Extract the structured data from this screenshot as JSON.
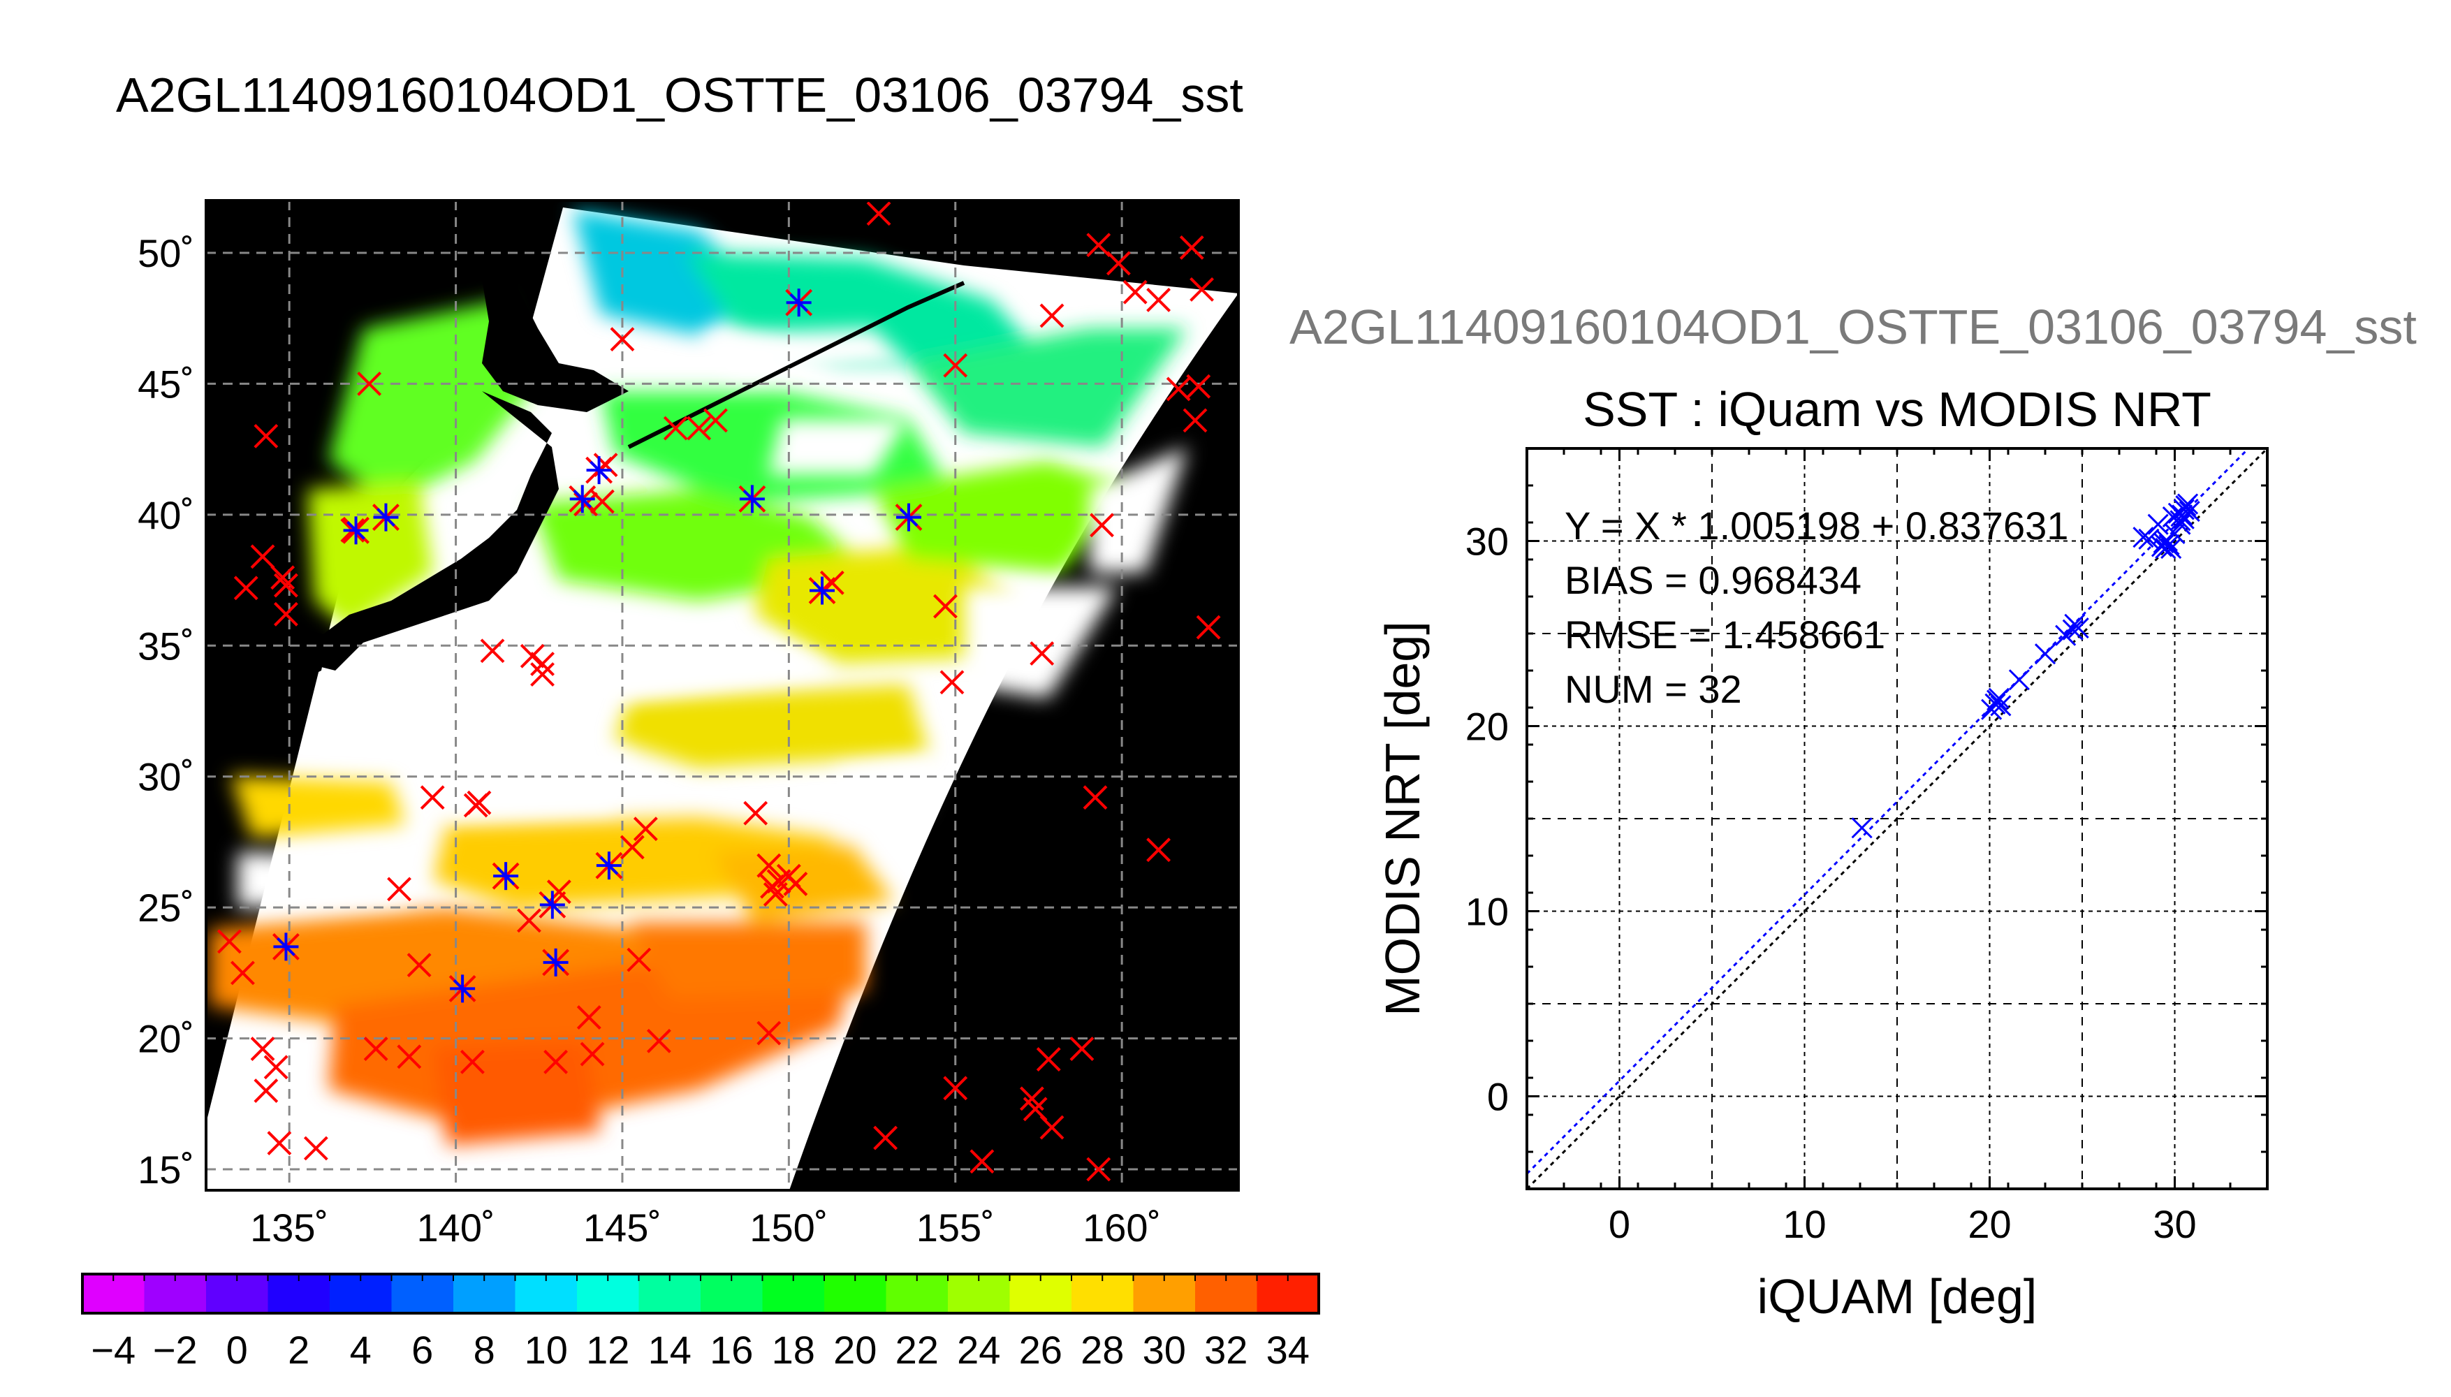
{
  "main_title": "A2GL11409160104OD1_OSTTE_03106_03794_sst",
  "colors": {
    "land": "#000000",
    "cloud": "#ffffff",
    "outside_swath": "#000000",
    "grid": "#888888",
    "iquam_marker": "#ff0000",
    "match_marker": "#0000ff",
    "fit_line": "#0000ff",
    "one_to_one_line": "#000000",
    "right_title": "#7a7a7a"
  },
  "map": {
    "lon_ticks": [
      135,
      140,
      145,
      150,
      155,
      160
    ],
    "lat_ticks": [
      15,
      20,
      25,
      30,
      35,
      40,
      45,
      50
    ],
    "lon_tick_labels": [
      "135˚",
      "140˚",
      "145˚",
      "150˚",
      "155˚",
      "160˚"
    ],
    "lat_tick_labels": [
      "15˚",
      "20˚",
      "25˚",
      "30˚",
      "35˚",
      "40˚",
      "45˚",
      "50˚"
    ],
    "lon_range": [
      132.5,
      163.5
    ],
    "lat_range": [
      14.2,
      52.0
    ],
    "iquam_points": [
      [
        133.2,
        23.7
      ],
      [
        133.6,
        22.5
      ],
      [
        134.2,
        19.6
      ],
      [
        134.6,
        18.9
      ],
      [
        134.3,
        18.0
      ],
      [
        134.7,
        16.0
      ],
      [
        135.8,
        15.8
      ],
      [
        137.6,
        19.6
      ],
      [
        138.6,
        19.3
      ],
      [
        140.5,
        19.1
      ],
      [
        143.0,
        19.1
      ],
      [
        144.0,
        20.8
      ],
      [
        144.1,
        19.4
      ],
      [
        145.5,
        23.0
      ],
      [
        146.1,
        19.9
      ],
      [
        149.4,
        20.2
      ],
      [
        152.9,
        16.2
      ],
      [
        155.0,
        18.1
      ],
      [
        157.3,
        17.7
      ],
      [
        157.4,
        17.3
      ],
      [
        157.9,
        16.6
      ],
      [
        157.8,
        19.2
      ],
      [
        158.8,
        19.6
      ],
      [
        159.3,
        15.0
      ],
      [
        155.8,
        15.3
      ],
      [
        134.3,
        43.0
      ],
      [
        133.7,
        37.2
      ],
      [
        134.2,
        38.4
      ],
      [
        134.8,
        37.6
      ],
      [
        134.9,
        37.3
      ],
      [
        134.9,
        36.2
      ],
      [
        136.9,
        39.4
      ],
      [
        137.4,
        45.0
      ],
      [
        138.3,
        25.7
      ],
      [
        138.9,
        22.8
      ],
      [
        139.3,
        29.2
      ],
      [
        140.6,
        28.9
      ],
      [
        140.7,
        29.0
      ],
      [
        141.1,
        34.8
      ],
      [
        142.2,
        24.5
      ],
      [
        142.3,
        34.6
      ],
      [
        142.6,
        34.3
      ],
      [
        142.6,
        33.9
      ],
      [
        143.1,
        25.6
      ],
      [
        143.9,
        40.4
      ],
      [
        144.4,
        40.5
      ],
      [
        144.5,
        41.9
      ],
      [
        145.0,
        46.7
      ],
      [
        145.3,
        27.3
      ],
      [
        146.6,
        43.3
      ],
      [
        147.3,
        43.3
      ],
      [
        147.8,
        43.6
      ],
      [
        149.0,
        28.6
      ],
      [
        149.4,
        26.6
      ],
      [
        149.5,
        25.8
      ],
      [
        149.6,
        25.5
      ],
      [
        149.7,
        26.0
      ],
      [
        150.0,
        26.2
      ],
      [
        150.2,
        25.9
      ],
      [
        151.3,
        37.4
      ],
      [
        152.7,
        51.5
      ],
      [
        154.7,
        36.5
      ],
      [
        154.9,
        33.6
      ],
      [
        155.0,
        45.7
      ],
      [
        157.6,
        34.7
      ],
      [
        157.9,
        47.6
      ],
      [
        159.3,
        50.3
      ],
      [
        159.4,
        39.6
      ],
      [
        159.9,
        49.6
      ],
      [
        160.4,
        48.5
      ],
      [
        161.1,
        48.2
      ],
      [
        162.1,
        50.2
      ],
      [
        162.3,
        44.9
      ],
      [
        162.2,
        43.6
      ],
      [
        162.4,
        48.6
      ],
      [
        161.1,
        27.2
      ],
      [
        159.2,
        29.2
      ],
      [
        162.6,
        35.7
      ],
      [
        161.7,
        44.8
      ],
      [
        145.7,
        28.0
      ]
    ],
    "match_points": [
      [
        134.9,
        23.5
      ],
      [
        137.0,
        39.4
      ],
      [
        137.9,
        39.9
      ],
      [
        140.2,
        21.9
      ],
      [
        141.5,
        26.2
      ],
      [
        142.9,
        25.1
      ],
      [
        143.0,
        22.9
      ],
      [
        143.8,
        40.6
      ],
      [
        144.6,
        26.6
      ],
      [
        148.9,
        40.6
      ],
      [
        150.3,
        48.1
      ],
      [
        151.0,
        37.1
      ],
      [
        153.6,
        39.9
      ],
      [
        144.3,
        41.7
      ]
    ]
  },
  "colorbar": {
    "min": -5,
    "max": 35,
    "tick_values": [
      -4,
      -2,
      0,
      2,
      4,
      6,
      8,
      10,
      12,
      14,
      16,
      18,
      20,
      22,
      24,
      26,
      28,
      30,
      32,
      34
    ],
    "tick_labels": [
      "−4",
      "−2",
      "0",
      "2",
      "4",
      "6",
      "8",
      "10",
      "12",
      "14",
      "16",
      "18",
      "20",
      "22",
      "24",
      "26",
      "28",
      "30",
      "32",
      "34"
    ]
  },
  "chart_data": {
    "type": "scatter",
    "title": "SST : iQuam vs MODIS NRT",
    "supertitle": "A2GL11409160104OD1_OSTTE_03106_03794_sst",
    "xlabel": "iQUAM [deg]",
    "ylabel": "MODIS NRT [deg]",
    "xlim": [
      -5,
      35
    ],
    "ylim": [
      -5,
      35
    ],
    "x_ticks": [
      0,
      10,
      20,
      30
    ],
    "y_ticks": [
      0,
      10,
      20,
      30
    ],
    "grid": true,
    "annotations": [
      "Y = X * 1.005198 + 0.837631",
      "BIAS = 0.968434",
      "RMSE = 1.458661",
      "NUM = 32"
    ],
    "fit": {
      "slope": 1.005198,
      "intercept": 0.837631
    },
    "points": {
      "x": [
        13.1,
        20.1,
        20.3,
        20.5,
        20.6,
        20.4,
        21.6,
        23.0,
        24.1,
        24.6,
        24.8,
        24.5,
        28.3,
        28.6,
        29.1,
        29.3,
        29.5,
        29.6,
        29.7,
        29.4,
        29.8,
        30.0,
        30.3,
        30.4,
        30.6,
        30.5,
        30.7,
        30.8,
        30.3,
        30.5,
        30.2,
        29.9
      ],
      "y": [
        14.5,
        20.9,
        21.2,
        21.5,
        21.1,
        21.4,
        22.5,
        23.9,
        24.9,
        25.5,
        25.3,
        25.2,
        30.2,
        30.1,
        30.9,
        29.7,
        29.6,
        30.0,
        29.8,
        29.9,
        29.6,
        30.4,
        31.1,
        31.4,
        31.9,
        31.7,
        32.0,
        31.6,
        30.9,
        31.2,
        31.5,
        31.3
      ]
    }
  }
}
